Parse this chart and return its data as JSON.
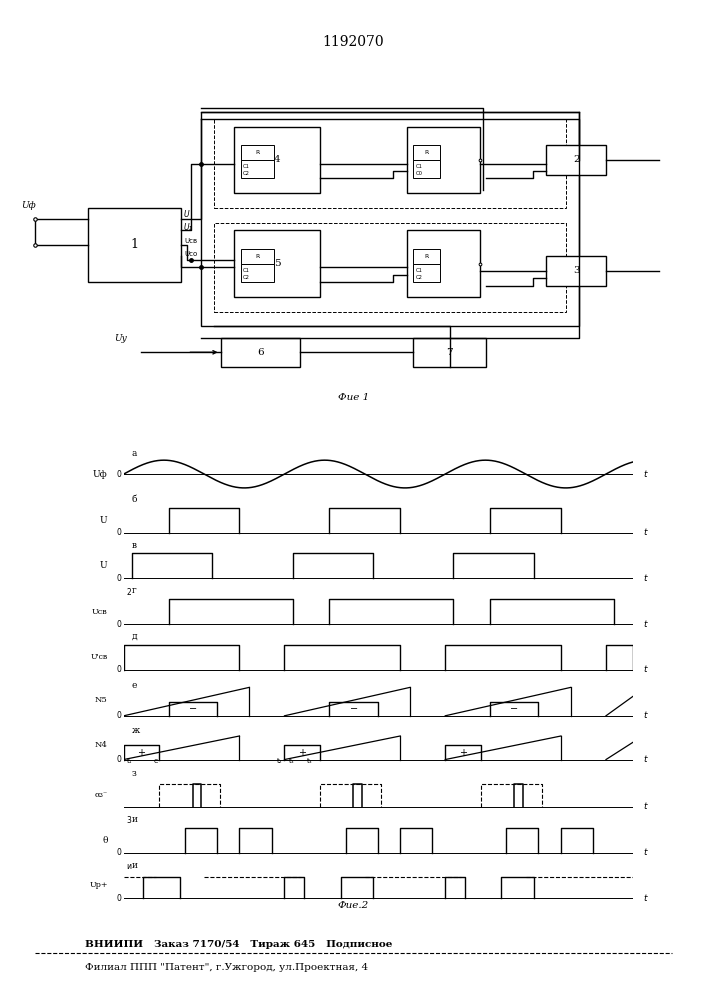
{
  "title": "1192070",
  "fig1_label": "Фие 1",
  "fig2_label": "Фие.2",
  "bottom_line1": "ВНИИПИ   Заказ 7170/54   Тираж 645   Подписное",
  "bottom_line2": "Филиал ППП \"Патент\", г.Ужгород, ул.Проектная, 4",
  "period": 3.0,
  "T": 9.5
}
